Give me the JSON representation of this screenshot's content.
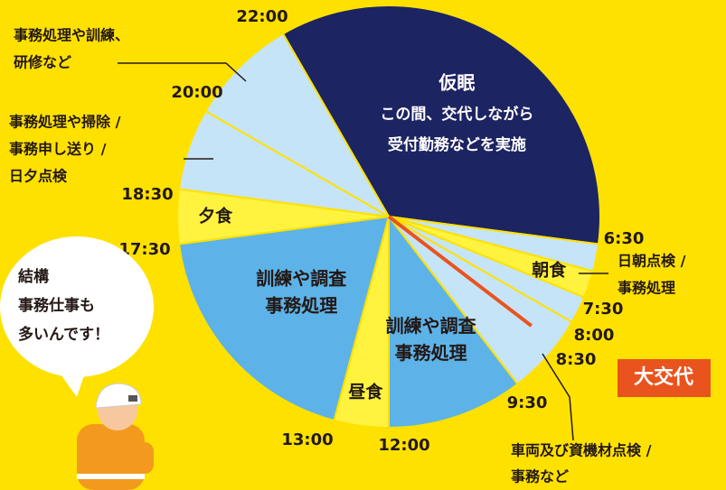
{
  "segments": [
    {
      "start": 22,
      "end": 6.5,
      "color": "#1d2462",
      "lines": [
        "仮眠",
        "この間、交代しながら",
        "受付勤務などを実施"
      ]
    },
    {
      "start": 6.5,
      "end": 7,
      "color": "#c6e4f7"
    },
    {
      "start": 7,
      "end": 7.5,
      "color": "#fff33f",
      "lines": [
        "朝食"
      ]
    },
    {
      "start": 7.5,
      "end": 8,
      "color": "#c6e4f7"
    },
    {
      "start": 8,
      "end": 9.5,
      "color": "#c6e4f7"
    },
    {
      "start": 9.5,
      "end": 12,
      "color": "#5db3e8",
      "lines": [
        "訓練や調査",
        "事務処理"
      ]
    },
    {
      "start": 12,
      "end": 13,
      "color": "#fff33f",
      "lines": [
        "昼食"
      ]
    },
    {
      "start": 13,
      "end": 17.5,
      "color": "#5db3e8",
      "lines": [
        "訓練や調査",
        "事務処理"
      ]
    },
    {
      "start": 17.5,
      "end": 18.5,
      "color": "#fff33f",
      "lines": [
        "夕食"
      ]
    },
    {
      "start": 18.5,
      "end": 20,
      "color": "#c6e4f7"
    },
    {
      "start": 20,
      "end": 22,
      "color": "#c6e4f7"
    }
  ],
  "time_labels": [
    "22:00",
    "20:00",
    "18:30",
    "17:30",
    "13:00",
    "12:00",
    "9:30",
    "8:30",
    "8:00",
    "7:30",
    "6:30"
  ],
  "handover": {
    "hour": 8.5,
    "label": "大交代",
    "color": "#e9531d"
  },
  "notes": [
    {
      "lines": [
        "事務処理や訓練、",
        "研修など"
      ]
    },
    {
      "lines": [
        "事務処理や掃除 /",
        "事務申し送り /",
        "日夕点検"
      ]
    },
    {
      "lines": [
        "日朝点検 /",
        "事務処理"
      ]
    },
    {
      "lines": [
        "車両及び資機材点検 /",
        "事務など"
      ]
    }
  ],
  "bubble": [
    "結構",
    "事務仕事も",
    "多いんです！"
  ]
}
